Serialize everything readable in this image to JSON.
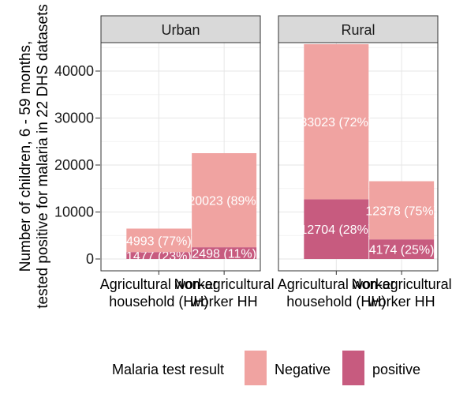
{
  "chart_data": {
    "type": "bar",
    "stacked": true,
    "ylabel": "Number of children, 6 - 59 months,\ntested positive for malaria in 22 DHS datasets",
    "ylim": [
      0,
      46000
    ],
    "yticks": [
      0,
      10000,
      20000,
      30000,
      40000
    ],
    "grid": true,
    "categories": [
      "Agricultural worker\nhousehold (HH)",
      "Non-agricultural\nworker HH"
    ],
    "legend": {
      "title": "Malaria test result",
      "position": "bottom",
      "entries": [
        {
          "name": "Negative",
          "color": "#f0a3a1"
        },
        {
          "name": "positive",
          "color": "#c75b7f"
        }
      ]
    },
    "panels": [
      {
        "title": "Urban",
        "series": [
          {
            "name": "positive",
            "values": [
              1477,
              2498
            ],
            "labels": [
              "1477 (23%)",
              "2498 (11%)"
            ]
          },
          {
            "name": "Negative",
            "values": [
              4993,
              20023
            ],
            "labels": [
              "4993 (77%)",
              "20023 (89%)"
            ]
          }
        ]
      },
      {
        "title": "Rural",
        "series": [
          {
            "name": "positive",
            "values": [
              12704,
              4174
            ],
            "labels": [
              "12704 (28%)",
              "4174 (25%)"
            ]
          },
          {
            "name": "Negative",
            "values": [
              33023,
              12378
            ],
            "labels": [
              "33023 (72%)",
              "12378 (75%)"
            ]
          }
        ]
      }
    ]
  }
}
